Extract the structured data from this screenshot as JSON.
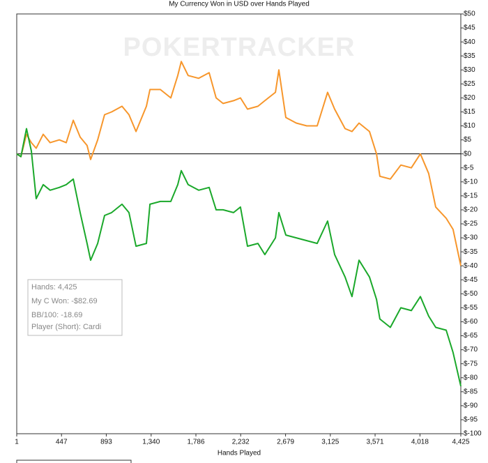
{
  "chart_data": {
    "type": "line",
    "title": "My Currency Won in USD over Hands Played",
    "x_label": "Hands Played",
    "watermark": "POKERTRACKER",
    "x": [
      1,
      43,
      98,
      147,
      195,
      265,
      334,
      425,
      494,
      564,
      633,
      702,
      737,
      807,
      876,
      946,
      1050,
      1119,
      1189,
      1293,
      1328,
      1432,
      1536,
      1605,
      1640,
      1709,
      1814,
      1918,
      1987,
      2057,
      2161,
      2230,
      2300,
      2404,
      2473,
      2578,
      2612,
      2682,
      2786,
      2890,
      2994,
      3098,
      3168,
      3272,
      3341,
      3411,
      3515,
      3585,
      3619,
      3723,
      3828,
      3932,
      4022,
      4105,
      4175,
      4279,
      4348,
      4425
    ],
    "series": [
      {
        "color": "#f7962b",
        "values": [
          0,
          -1,
          7,
          4,
          2,
          7,
          4,
          5,
          4,
          12,
          6,
          3,
          -2,
          5,
          14,
          15,
          17,
          14,
          8,
          17,
          23,
          23,
          20,
          28,
          33,
          28,
          27,
          29,
          20,
          18,
          19,
          20,
          16,
          17,
          19,
          22,
          30,
          13,
          11,
          10,
          10,
          22,
          16,
          9,
          8,
          11,
          8,
          0,
          -8,
          -9,
          -4,
          -5,
          0,
          -7,
          -19,
          -23,
          -27,
          -40
        ]
      },
      {
        "color": "#1aa82a",
        "values": [
          0,
          -1,
          9,
          1,
          -16,
          -11,
          -13,
          -12,
          -11,
          -9,
          -21,
          -32,
          -38,
          -32,
          -22,
          -21,
          -18,
          -21,
          -33,
          -32,
          -18,
          -17,
          -17,
          -11,
          -6,
          -11,
          -13,
          -12,
          -20,
          -20,
          -21,
          -19,
          -33,
          -32,
          -36,
          -30,
          -21,
          -29,
          -30,
          -31,
          -32,
          -24,
          -36,
          -44,
          -51,
          -38,
          -44,
          -52,
          -59,
          -62,
          -55,
          -56,
          -51,
          -58,
          -62,
          -63,
          -71,
          -83
        ]
      }
    ],
    "xlim": [
      1,
      4425
    ],
    "xticks": [
      1,
      447,
      893,
      {
        "value": 1340,
        "label": "1,340"
      },
      {
        "value": 1786,
        "label": "1,786"
      },
      {
        "value": 2232,
        "label": "2,232"
      },
      {
        "value": 2679,
        "label": "2,679"
      },
      {
        "value": 3125,
        "label": "3,125"
      },
      {
        "value": 3571,
        "label": "3,571"
      },
      {
        "value": 4018,
        "label": "4,018"
      },
      {
        "value": 4425,
        "label": "4,425"
      }
    ],
    "ylim": [
      -100,
      50
    ],
    "yticks": [
      {
        "value": 50,
        "label": "$50"
      },
      {
        "value": 45,
        "label": "$45"
      },
      {
        "value": 40,
        "label": "$40"
      },
      {
        "value": 35,
        "label": "$35"
      },
      {
        "value": 30,
        "label": "$30"
      },
      {
        "value": 25,
        "label": "$25"
      },
      {
        "value": 20,
        "label": "$20"
      },
      {
        "value": 15,
        "label": "$15"
      },
      {
        "value": 10,
        "label": "$10"
      },
      {
        "value": 5,
        "label": "$5"
      },
      {
        "value": 0,
        "label": "$0"
      },
      {
        "value": -5,
        "label": "$-5"
      },
      {
        "value": -10,
        "label": "$-10"
      },
      {
        "value": -15,
        "label": "$-15"
      },
      {
        "value": -20,
        "label": "$-20"
      },
      {
        "value": -25,
        "label": "$-25"
      },
      {
        "value": -30,
        "label": "$-30"
      },
      {
        "value": -35,
        "label": "$-35"
      },
      {
        "value": -40,
        "label": "$-40"
      },
      {
        "value": -45,
        "label": "$-45"
      },
      {
        "value": -50,
        "label": "$-50"
      },
      {
        "value": -55,
        "label": "$-55"
      },
      {
        "value": -60,
        "label": "$-60"
      },
      {
        "value": -65,
        "label": "$-65"
      },
      {
        "value": -70,
        "label": "$-70"
      },
      {
        "value": -75,
        "label": "$-75"
      },
      {
        "value": -80,
        "label": "$-80"
      },
      {
        "value": -85,
        "label": "$-85"
      },
      {
        "value": -90,
        "label": "$-90"
      },
      {
        "value": -95,
        "label": "$-95"
      },
      {
        "value": -100,
        "label": "$-100"
      }
    ],
    "zero_line": 0,
    "tooltip": [
      "Hands: 4,425",
      "My C Won: -$82.69",
      "BB/100: -18.69",
      "Player (Short): Cardi"
    ]
  }
}
